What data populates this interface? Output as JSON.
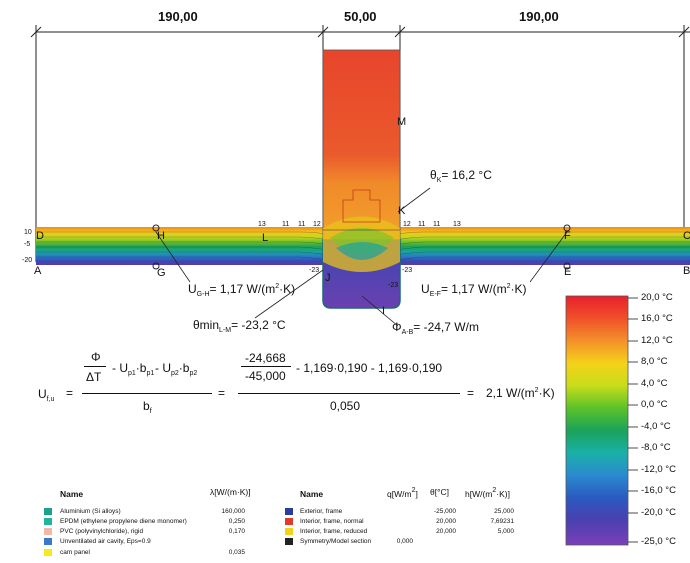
{
  "dimensions": {
    "left": "190,00",
    "middle": "50,00",
    "right": "190,00"
  },
  "edge_labels": {
    "D": "D",
    "A": "A",
    "H": "H",
    "G": "G",
    "L": "L",
    "J": "J",
    "K": "K",
    "M": "M",
    "I": "I",
    "F": "F",
    "E": "E",
    "C": "C",
    "B": "B"
  },
  "temp_scale": {
    "t10": "10",
    "t5": "-5",
    "t20": "-20"
  },
  "isotherm_labels": {
    "a": "13",
    "b": "11",
    "c": "11",
    "d": "12",
    "e": "12",
    "f": "11",
    "g": "11",
    "h": "13",
    "m23a": "-23",
    "m23b": "-23",
    "m23c": "-23"
  },
  "annot": {
    "theta_k": "θ",
    "theta_k_sub": "K",
    "theta_k_val": "= 16,2 °C",
    "u_gh": "U",
    "u_gh_sub": "G-H",
    "u_gh_val": "= 1,17 W/(m",
    "u_gh_sup": "2",
    "u_gh_end": "·K)",
    "u_ef": "U",
    "u_ef_sub": "E-F",
    "u_ef_val": "= 1,17 W/(m",
    "u_ef_sup": "2",
    "u_ef_end": "·K)",
    "theta_min": "θmin",
    "theta_min_sub": "L-M",
    "theta_min_val": "= -23,2 °C",
    "phi": "Φ",
    "phi_sub": "A-B",
    "phi_val": "= -24,7 W/m"
  },
  "equation": {
    "u_lhs": "U",
    "u_lhs_sub": "f,u",
    "eq1": "=",
    "phi": "Φ",
    "dT": "ΔT",
    "term1": "-  U",
    "term1_sub1": "p1",
    "term1_b": "·b",
    "term1_sub2": "p1",
    "term2": "-  U",
    "term2_sub1": "p2",
    "term2_b": "·b",
    "term2_sub2": "p2",
    "bf": "b",
    "bf_sub": "f",
    "eq2": "=",
    "num1": "-24,668",
    "num2": "-45,000",
    "rest": "-  1,169·0,190  -  1,169·0,190",
    "den": "0,050",
    "eq3": "=",
    "result": "2,1 W/(m",
    "result_sup": "2",
    "result_end": "·K)"
  },
  "legend_scale": [
    "20,0 °C",
    "16,0 °C",
    "12,0 °C",
    "8,0 °C",
    "4,0 °C",
    "0,0 °C",
    "-4,0 °C",
    "-8,0 °C",
    "-12,0 °C",
    "-16,0 °C",
    "-20,0 °C",
    "-25,0 °C"
  ],
  "materials": {
    "header_name": "Name",
    "header_lambda": "λ[W/(m·K)]",
    "rows": [
      {
        "name": "Aluminium (Si alloys)",
        "value": "160,000",
        "color": "#1aa38a"
      },
      {
        "name": "EPDM (ethylene propylene diene monomer)",
        "value": "0,250",
        "color": "#1fb3a0"
      },
      {
        "name": "PVC (polyvinylchloride), rigid",
        "value": "0,170",
        "color": "#f2b8b0"
      },
      {
        "name": "Unventilated air cavity, Eps=0.9",
        "value": "",
        "color": "#3a78c8"
      },
      {
        "name": "cam panel",
        "value": "0,035",
        "color": "#f4ec1a"
      }
    ]
  },
  "boundaries": {
    "header_name": "Name",
    "header_q": "q[W/m",
    "header_q_sup": "2",
    "header_q_end": "]",
    "header_theta": "θ[°C]",
    "header_h": "h[W/(m",
    "header_h_sup": "2",
    "header_h_end": "·K)]",
    "rows": [
      {
        "name": "Exterior, frame",
        "q": "",
        "theta": "-25,000",
        "h": "25,000",
        "color": "#2a3c9c"
      },
      {
        "name": "Interior, frame, normal",
        "q": "",
        "theta": "20,000",
        "h": "7,69231",
        "color": "#e03a2a"
      },
      {
        "name": "Interior, frame, reduced",
        "q": "",
        "theta": "20,000",
        "h": "5,000",
        "color": "#f2d21a"
      },
      {
        "name": "Symmetry/Model section",
        "q": "0,000",
        "theta": "",
        "h": "",
        "color": "#222222"
      }
    ]
  }
}
